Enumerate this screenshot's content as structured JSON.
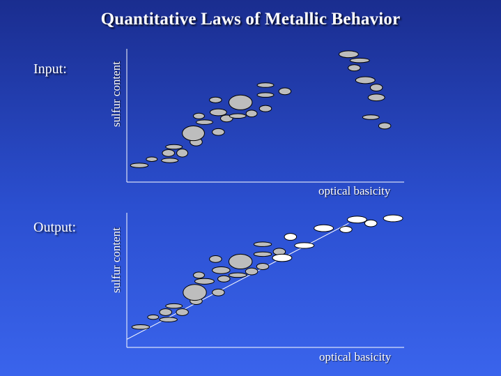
{
  "title": "Quantitative Laws of Metallic Behavior",
  "panels": [
    {
      "label": "Input:",
      "ylabel": "sulfur content",
      "xlabel": "optical basicity"
    },
    {
      "label": "Output:",
      "ylabel": "sulfur content",
      "xlabel": "optical basicity"
    }
  ],
  "colors": {
    "background_top": "#1a2d8f",
    "background_bottom": "#3a64ec",
    "gray_marker": "#bdbdbd",
    "white_marker": "#ffffff",
    "axis": "#ffffff"
  },
  "chart_data": [
    {
      "type": "scatter",
      "title": "Input:",
      "xlabel": "optical basicity",
      "ylabel": "sulfur content",
      "grid": false,
      "series": [
        {
          "kind": "gray",
          "points": [
            {
              "x": 0.045,
              "y": 0.09,
              "rx": 0.032,
              "ry": 0.008
            },
            {
              "x": 0.09,
              "y": 0.14,
              "rx": 0.02,
              "ry": 0.008
            },
            {
              "x": 0.155,
              "y": 0.13,
              "rx": 0.03,
              "ry": 0.008
            },
            {
              "x": 0.15,
              "y": 0.19,
              "rx": 0.022,
              "ry": 0.012
            },
            {
              "x": 0.2,
              "y": 0.19,
              "rx": 0.02,
              "ry": 0.014
            },
            {
              "x": 0.17,
              "y": 0.24,
              "rx": 0.03,
              "ry": 0.008
            },
            {
              "x": 0.25,
              "y": 0.28,
              "rx": 0.022,
              "ry": 0.014
            },
            {
              "x": 0.24,
              "y": 0.35,
              "rx": 0.04,
              "ry": 0.026
            },
            {
              "x": 0.33,
              "y": 0.36,
              "rx": 0.022,
              "ry": 0.012
            },
            {
              "x": 0.28,
              "y": 0.44,
              "rx": 0.03,
              "ry": 0.008
            },
            {
              "x": 0.26,
              "y": 0.49,
              "rx": 0.02,
              "ry": 0.01
            },
            {
              "x": 0.33,
              "y": 0.52,
              "rx": 0.03,
              "ry": 0.012
            },
            {
              "x": 0.36,
              "y": 0.47,
              "rx": 0.022,
              "ry": 0.012
            },
            {
              "x": 0.4,
              "y": 0.49,
              "rx": 0.03,
              "ry": 0.008
            },
            {
              "x": 0.45,
              "y": 0.51,
              "rx": 0.02,
              "ry": 0.012
            },
            {
              "x": 0.32,
              "y": 0.62,
              "rx": 0.022,
              "ry": 0.01
            },
            {
              "x": 0.41,
              "y": 0.6,
              "rx": 0.042,
              "ry": 0.026
            },
            {
              "x": 0.5,
              "y": 0.55,
              "rx": 0.022,
              "ry": 0.011
            },
            {
              "x": 0.5,
              "y": 0.66,
              "rx": 0.03,
              "ry": 0.008
            },
            {
              "x": 0.5,
              "y": 0.74,
              "rx": 0.03,
              "ry": 0.008
            },
            {
              "x": 0.57,
              "y": 0.69,
              "rx": 0.022,
              "ry": 0.012
            },
            {
              "x": 0.8,
              "y": 0.99,
              "rx": 0.035,
              "ry": 0.012
            },
            {
              "x": 0.84,
              "y": 0.94,
              "rx": 0.035,
              "ry": 0.008
            },
            {
              "x": 0.82,
              "y": 0.88,
              "rx": 0.022,
              "ry": 0.011
            },
            {
              "x": 0.86,
              "y": 0.78,
              "rx": 0.035,
              "ry": 0.012
            },
            {
              "x": 0.9,
              "y": 0.72,
              "rx": 0.022,
              "ry": 0.012
            },
            {
              "x": 0.9,
              "y": 0.64,
              "rx": 0.03,
              "ry": 0.012
            },
            {
              "x": 0.88,
              "y": 0.48,
              "rx": 0.03,
              "ry": 0.008
            },
            {
              "x": 0.93,
              "y": 0.41,
              "rx": 0.022,
              "ry": 0.011
            }
          ]
        }
      ]
    },
    {
      "type": "scatter",
      "title": "Output:",
      "xlabel": "optical basicity",
      "ylabel": "sulfur content",
      "grid": false,
      "trendline": {
        "from": [
          0.0,
          0.02
        ],
        "to": [
          0.8,
          0.96
        ]
      },
      "series": [
        {
          "kind": "gray",
          "points": [
            {
              "x": 0.05,
              "y": 0.12,
              "rx": 0.032,
              "ry": 0.008
            },
            {
              "x": 0.095,
              "y": 0.2,
              "rx": 0.02,
              "ry": 0.008
            },
            {
              "x": 0.15,
              "y": 0.18,
              "rx": 0.032,
              "ry": 0.008
            },
            {
              "x": 0.14,
              "y": 0.24,
              "rx": 0.022,
              "ry": 0.012
            },
            {
              "x": 0.2,
              "y": 0.24,
              "rx": 0.022,
              "ry": 0.012
            },
            {
              "x": 0.17,
              "y": 0.29,
              "rx": 0.03,
              "ry": 0.008
            },
            {
              "x": 0.25,
              "y": 0.33,
              "rx": 0.022,
              "ry": 0.012
            },
            {
              "x": 0.245,
              "y": 0.4,
              "rx": 0.042,
              "ry": 0.028
            },
            {
              "x": 0.33,
              "y": 0.4,
              "rx": 0.022,
              "ry": 0.012
            },
            {
              "x": 0.28,
              "y": 0.49,
              "rx": 0.035,
              "ry": 0.01
            },
            {
              "x": 0.26,
              "y": 0.54,
              "rx": 0.02,
              "ry": 0.011
            },
            {
              "x": 0.34,
              "y": 0.58,
              "rx": 0.032,
              "ry": 0.012
            },
            {
              "x": 0.35,
              "y": 0.51,
              "rx": 0.022,
              "ry": 0.011
            },
            {
              "x": 0.4,
              "y": 0.54,
              "rx": 0.032,
              "ry": 0.008
            },
            {
              "x": 0.45,
              "y": 0.57,
              "rx": 0.022,
              "ry": 0.012
            },
            {
              "x": 0.32,
              "y": 0.67,
              "rx": 0.022,
              "ry": 0.012
            },
            {
              "x": 0.41,
              "y": 0.65,
              "rx": 0.042,
              "ry": 0.026
            },
            {
              "x": 0.49,
              "y": 0.61,
              "rx": 0.022,
              "ry": 0.011
            },
            {
              "x": 0.49,
              "y": 0.71,
              "rx": 0.032,
              "ry": 0.008
            },
            {
              "x": 0.49,
              "y": 0.79,
              "rx": 0.032,
              "ry": 0.008
            },
            {
              "x": 0.55,
              "y": 0.73,
              "rx": 0.022,
              "ry": 0.012
            }
          ]
        },
        {
          "kind": "white",
          "points": [
            {
              "x": 0.56,
              "y": 0.68,
              "rx": 0.035,
              "ry": 0.013
            },
            {
              "x": 0.59,
              "y": 0.85,
              "rx": 0.022,
              "ry": 0.012
            },
            {
              "x": 0.64,
              "y": 0.78,
              "rx": 0.035,
              "ry": 0.01
            },
            {
              "x": 0.71,
              "y": 0.92,
              "rx": 0.035,
              "ry": 0.012
            },
            {
              "x": 0.79,
              "y": 0.91,
              "rx": 0.022,
              "ry": 0.011
            },
            {
              "x": 0.83,
              "y": 0.99,
              "rx": 0.035,
              "ry": 0.012
            },
            {
              "x": 0.88,
              "y": 0.96,
              "rx": 0.022,
              "ry": 0.012
            },
            {
              "x": 0.96,
              "y": 1.0,
              "rx": 0.035,
              "ry": 0.012
            }
          ]
        }
      ]
    }
  ]
}
